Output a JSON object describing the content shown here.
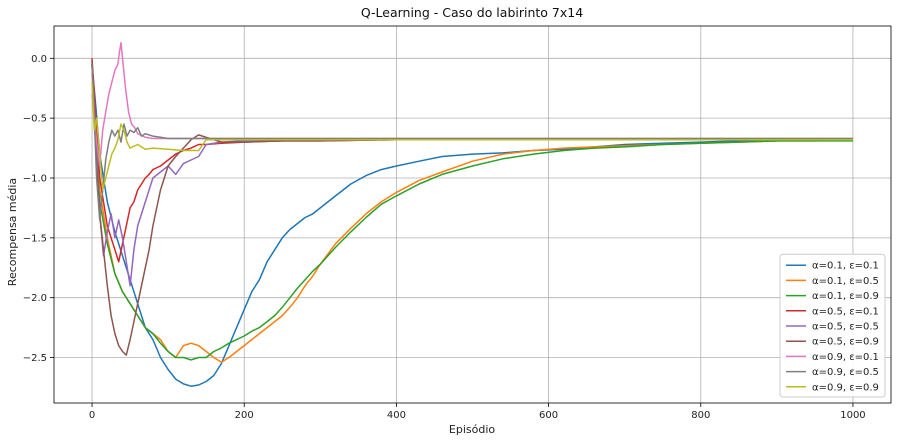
{
  "chart_data": {
    "type": "line",
    "title": "Q-Learning - Caso do labirinto 7x14",
    "xlabel": "Episódio",
    "ylabel": "Recompensa média",
    "xlim": [
      -50,
      1050
    ],
    "ylim": [
      -2.88,
      0.27
    ],
    "xticks": [
      0,
      200,
      400,
      600,
      800,
      1000
    ],
    "yticks": [
      0.0,
      -0.5,
      -1.0,
      -1.5,
      -2.0,
      -2.5
    ],
    "xtick_labels": [
      "0",
      "200",
      "400",
      "600",
      "800",
      "1000"
    ],
    "ytick_labels": [
      "0.0",
      "−0.5",
      "−1.0",
      "−1.5",
      "−2.0",
      "−2.5"
    ],
    "grid": true,
    "legend_position": "lower-right",
    "series": [
      {
        "name": "α=0.1, ε=0.1",
        "color": "#1f77b4",
        "x": [
          0,
          5,
          10,
          20,
          30,
          40,
          50,
          60,
          70,
          80,
          90,
          100,
          110,
          120,
          130,
          140,
          150,
          160,
          170,
          180,
          190,
          200,
          210,
          220,
          230,
          240,
          250,
          260,
          270,
          280,
          290,
          300,
          320,
          340,
          360,
          380,
          400,
          430,
          460,
          500,
          540,
          580,
          620,
          660,
          700,
          750,
          800,
          850,
          900,
          950,
          1000
        ],
        "y": [
          -0.05,
          -0.4,
          -0.8,
          -1.2,
          -1.45,
          -1.65,
          -1.85,
          -2.05,
          -2.25,
          -2.35,
          -2.5,
          -2.6,
          -2.68,
          -2.72,
          -2.74,
          -2.73,
          -2.7,
          -2.65,
          -2.55,
          -2.4,
          -2.25,
          -2.1,
          -1.95,
          -1.85,
          -1.7,
          -1.6,
          -1.5,
          -1.43,
          -1.38,
          -1.33,
          -1.3,
          -1.25,
          -1.15,
          -1.05,
          -0.98,
          -0.93,
          -0.9,
          -0.86,
          -0.82,
          -0.8,
          -0.79,
          -0.77,
          -0.76,
          -0.74,
          -0.72,
          -0.71,
          -0.7,
          -0.69,
          -0.69,
          -0.68,
          -0.68
        ]
      },
      {
        "name": "α=0.1, ε=0.5",
        "color": "#ff7f0e",
        "x": [
          0,
          5,
          10,
          20,
          30,
          40,
          50,
          60,
          70,
          80,
          90,
          100,
          110,
          120,
          130,
          140,
          150,
          160,
          170,
          180,
          190,
          200,
          210,
          220,
          230,
          240,
          250,
          260,
          270,
          280,
          290,
          300,
          320,
          340,
          360,
          380,
          400,
          430,
          460,
          500,
          540,
          580,
          620,
          660,
          700,
          750,
          800,
          850,
          900,
          950,
          1000
        ],
        "y": [
          -0.05,
          -0.6,
          -1.1,
          -1.5,
          -1.8,
          -1.95,
          -2.05,
          -2.15,
          -2.25,
          -2.3,
          -2.35,
          -2.45,
          -2.5,
          -2.4,
          -2.38,
          -2.4,
          -2.45,
          -2.5,
          -2.54,
          -2.5,
          -2.45,
          -2.4,
          -2.35,
          -2.3,
          -2.25,
          -2.2,
          -2.15,
          -2.08,
          -2.0,
          -1.9,
          -1.82,
          -1.72,
          -1.55,
          -1.42,
          -1.3,
          -1.2,
          -1.12,
          -1.02,
          -0.95,
          -0.86,
          -0.8,
          -0.77,
          -0.75,
          -0.74,
          -0.73,
          -0.72,
          -0.71,
          -0.7,
          -0.69,
          -0.69,
          -0.68
        ]
      },
      {
        "name": "α=0.1, ε=0.9",
        "color": "#2ca02c",
        "x": [
          0,
          5,
          10,
          20,
          30,
          40,
          50,
          60,
          70,
          80,
          90,
          100,
          110,
          120,
          130,
          140,
          150,
          160,
          170,
          180,
          190,
          200,
          210,
          220,
          230,
          240,
          250,
          260,
          270,
          280,
          290,
          300,
          320,
          340,
          360,
          380,
          400,
          430,
          460,
          500,
          540,
          580,
          620,
          660,
          700,
          750,
          800,
          850,
          900,
          950,
          1000
        ],
        "y": [
          -0.05,
          -0.7,
          -1.2,
          -1.55,
          -1.8,
          -1.95,
          -2.05,
          -2.15,
          -2.25,
          -2.3,
          -2.38,
          -2.45,
          -2.5,
          -2.5,
          -2.52,
          -2.5,
          -2.5,
          -2.45,
          -2.42,
          -2.38,
          -2.35,
          -2.32,
          -2.28,
          -2.25,
          -2.2,
          -2.15,
          -2.08,
          -2.0,
          -1.92,
          -1.85,
          -1.78,
          -1.72,
          -1.58,
          -1.45,
          -1.33,
          -1.22,
          -1.15,
          -1.05,
          -0.97,
          -0.9,
          -0.84,
          -0.8,
          -0.77,
          -0.75,
          -0.74,
          -0.72,
          -0.71,
          -0.7,
          -0.69,
          -0.69,
          -0.69
        ]
      },
      {
        "name": "α=0.5, ε=0.1",
        "color": "#d62728",
        "x": [
          0,
          3,
          6,
          10,
          15,
          20,
          25,
          30,
          35,
          40,
          45,
          50,
          55,
          60,
          65,
          70,
          75,
          80,
          90,
          100,
          110,
          120,
          130,
          140,
          150,
          170,
          200,
          250,
          300,
          400,
          600,
          800,
          1000
        ],
        "y": [
          0.0,
          -0.3,
          -0.6,
          -1.0,
          -1.2,
          -1.4,
          -1.5,
          -1.6,
          -1.7,
          -1.55,
          -1.4,
          -1.25,
          -1.2,
          -1.1,
          -1.05,
          -1.0,
          -0.97,
          -0.93,
          -0.9,
          -0.85,
          -0.8,
          -0.77,
          -0.75,
          -0.72,
          -0.72,
          -0.71,
          -0.7,
          -0.69,
          -0.69,
          -0.68,
          -0.68,
          -0.68,
          -0.68
        ]
      },
      {
        "name": "α=0.5, ε=0.5",
        "color": "#9467bd",
        "x": [
          0,
          3,
          6,
          10,
          15,
          20,
          25,
          30,
          35,
          40,
          45,
          50,
          55,
          60,
          65,
          70,
          75,
          80,
          90,
          100,
          110,
          120,
          130,
          140,
          150,
          170,
          200,
          250,
          300,
          400,
          600,
          800,
          1000
        ],
        "y": [
          -0.05,
          -0.4,
          -0.8,
          -1.3,
          -1.65,
          -1.45,
          -1.3,
          -1.5,
          -1.35,
          -1.5,
          -1.7,
          -1.9,
          -1.6,
          -1.4,
          -1.3,
          -1.2,
          -1.1,
          -1.0,
          -0.95,
          -0.9,
          -0.97,
          -0.88,
          -0.85,
          -0.82,
          -0.72,
          -0.7,
          -0.69,
          -0.69,
          -0.68,
          -0.68,
          -0.68,
          -0.68,
          -0.68
        ]
      },
      {
        "name": "α=0.5, ε=0.9",
        "color": "#8c564b",
        "x": [
          0,
          3,
          6,
          10,
          15,
          20,
          25,
          30,
          35,
          40,
          45,
          50,
          55,
          60,
          65,
          70,
          75,
          80,
          85,
          90,
          95,
          100,
          110,
          120,
          130,
          140,
          150,
          170,
          200,
          250,
          300,
          400,
          600,
          800,
          1000
        ],
        "y": [
          -0.02,
          -0.5,
          -0.9,
          -1.3,
          -1.6,
          -1.9,
          -2.15,
          -2.3,
          -2.4,
          -2.45,
          -2.48,
          -2.35,
          -2.2,
          -2.05,
          -1.9,
          -1.75,
          -1.6,
          -1.4,
          -1.25,
          -1.1,
          -1.0,
          -0.9,
          -0.82,
          -0.75,
          -0.68,
          -0.64,
          -0.66,
          -0.7,
          -0.7,
          -0.69,
          -0.69,
          -0.68,
          -0.68,
          -0.68,
          -0.68
        ]
      },
      {
        "name": "α=0.9, ε=0.1",
        "color": "#e377c2",
        "x": [
          0,
          3,
          6,
          10,
          14,
          18,
          22,
          26,
          30,
          34,
          36,
          38,
          40,
          44,
          48,
          52,
          56,
          60,
          70,
          80,
          100,
          130,
          160,
          200,
          300,
          500,
          800,
          1000
        ],
        "y": [
          -0.3,
          -0.5,
          -0.7,
          -0.9,
          -0.6,
          -0.45,
          -0.3,
          -0.2,
          -0.1,
          -0.05,
          0.05,
          0.13,
          0.0,
          -0.25,
          -0.45,
          -0.55,
          -0.58,
          -0.63,
          -0.66,
          -0.67,
          -0.67,
          -0.67,
          -0.67,
          -0.67,
          -0.67,
          -0.67,
          -0.67,
          -0.67
        ]
      },
      {
        "name": "α=0.9, ε=0.5",
        "color": "#7f7f7f",
        "x": [
          0,
          3,
          6,
          10,
          14,
          18,
          22,
          26,
          30,
          34,
          38,
          42,
          46,
          50,
          55,
          60,
          65,
          70,
          80,
          90,
          100,
          120,
          150,
          200,
          300,
          500,
          800,
          1000
        ],
        "y": [
          -0.05,
          -0.5,
          -1.0,
          -1.35,
          -1.1,
          -0.85,
          -0.7,
          -0.6,
          -0.65,
          -0.6,
          -0.7,
          -0.55,
          -0.65,
          -0.6,
          -0.62,
          -0.58,
          -0.65,
          -0.63,
          -0.65,
          -0.66,
          -0.67,
          -0.67,
          -0.67,
          -0.67,
          -0.67,
          -0.67,
          -0.67,
          -0.67
        ]
      },
      {
        "name": "α=0.9, ε=0.9",
        "color": "#bcbd22",
        "x": [
          0,
          3,
          6,
          10,
          14,
          18,
          22,
          26,
          30,
          34,
          38,
          42,
          46,
          50,
          60,
          70,
          80,
          100,
          120,
          140,
          150,
          160,
          200,
          300,
          500,
          800,
          1000
        ],
        "y": [
          -0.2,
          -0.6,
          -0.5,
          -0.8,
          -1.1,
          -1.0,
          -0.9,
          -0.8,
          -0.75,
          -0.68,
          -0.55,
          -0.6,
          -0.7,
          -0.75,
          -0.72,
          -0.76,
          -0.75,
          -0.76,
          -0.77,
          -0.77,
          -0.68,
          -0.68,
          -0.68,
          -0.68,
          -0.68,
          -0.68,
          -0.68
        ]
      }
    ]
  }
}
